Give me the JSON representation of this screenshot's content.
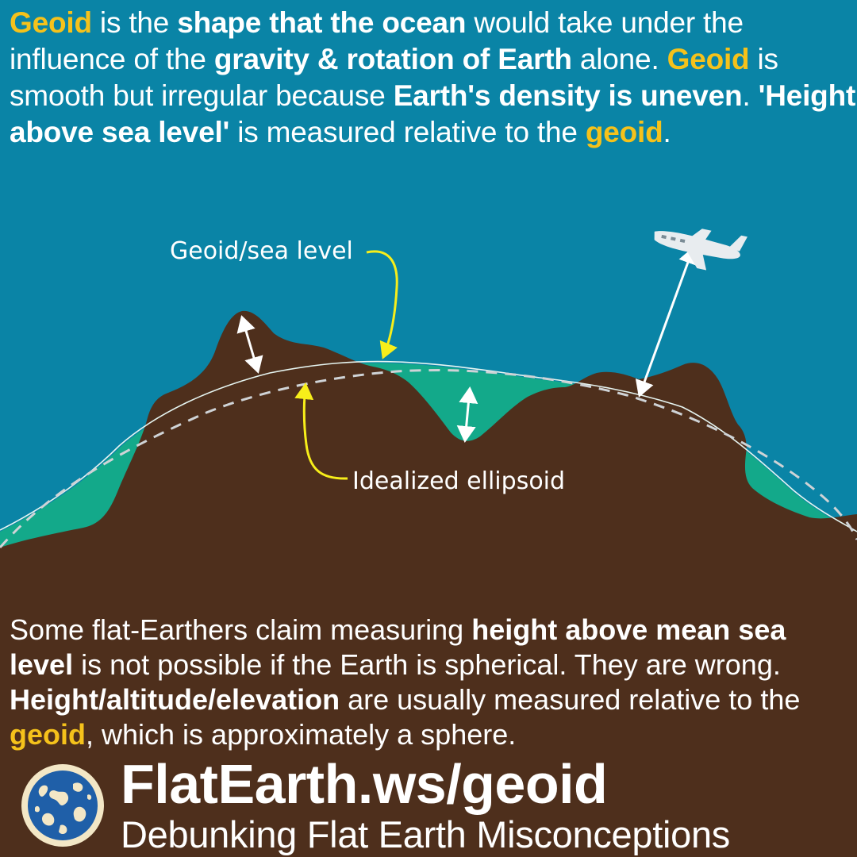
{
  "intro": {
    "s1": "Geoid",
    "s2": " is the ",
    "s3": "shape that the ocean",
    "s4": " would take under the influence of the ",
    "s5": "gravity & rotation of Earth",
    "s6": " alone. ",
    "s7": "Geoid",
    "s8": " is smooth but irregular because ",
    "s9": "Earth's density is uneven",
    "s10": ". ",
    "s11": "'Height above sea level'",
    "s12": " is measured relative to the ",
    "s13": "geoid",
    "s14": "."
  },
  "diagram": {
    "geoid_label": "Geoid/sea level",
    "ellipsoid_label": "Idealized ellipsoid"
  },
  "claim": {
    "s1": "Some flat-Earthers claim measuring ",
    "s2": "height above mean sea level",
    "s3": " is not possible if the Earth is spherical. They are wrong. ",
    "s4": "Height/altitude/elevation",
    "s5": " are usually measured relative to the ",
    "s6": "geoid",
    "s7": ", which is approximately a sphere."
  },
  "footer": {
    "site_url": "FlatEarth.ws/geoid",
    "tagline": "Debunking Flat Earth Misconceptions"
  },
  "colors": {
    "background": "#0a84a6",
    "land": "#4e2f1c",
    "sea": "#13a98a",
    "highlight": "#f5c21b",
    "callout_arrow": "#f7ee1a",
    "text": "#ffffff"
  }
}
